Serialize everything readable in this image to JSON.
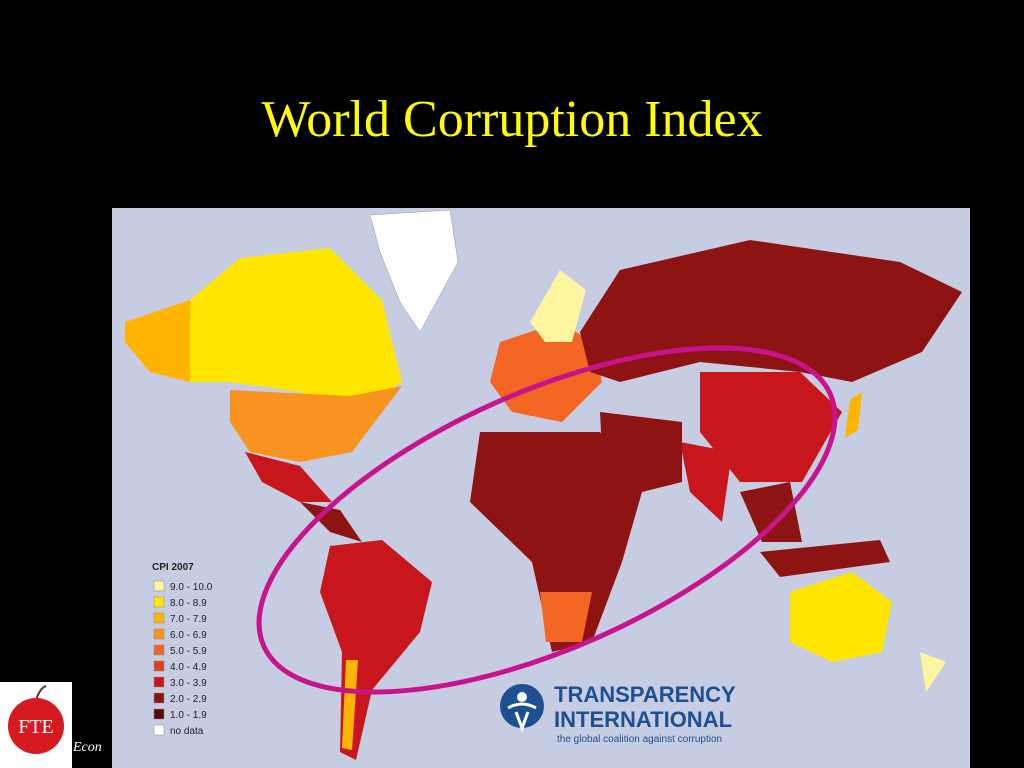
{
  "slide": {
    "title": "World Corruption Index",
    "legend": {
      "title": "CPI 2007",
      "items": [
        {
          "label": "9.0 - 10.0",
          "color": "#fff5a0"
        },
        {
          "label": "8.0 - 8.9",
          "color": "#ffe600"
        },
        {
          "label": "7.0 - 7.9",
          "color": "#ffb400"
        },
        {
          "label": "6.0 - 6.9",
          "color": "#f7931e"
        },
        {
          "label": "5.0 - 5.9",
          "color": "#f26522"
        },
        {
          "label": "4.0 - 4.9",
          "color": "#e2401c"
        },
        {
          "label": "3.0 - 3.9",
          "color": "#c8171c"
        },
        {
          "label": "2.0 - 2.9",
          "color": "#8e1414"
        },
        {
          "label": "1.0 - 1.9",
          "color": "#5a0b0b"
        },
        {
          "label": "no data",
          "color": "#ffffff"
        }
      ]
    },
    "organization": {
      "name_line1": "TRANSPARENCY",
      "name_line2": "INTERNATIONAL",
      "tagline": "the global coalition against corruption"
    },
    "footer": {
      "logo": "FTE",
      "text": "Econ"
    }
  }
}
